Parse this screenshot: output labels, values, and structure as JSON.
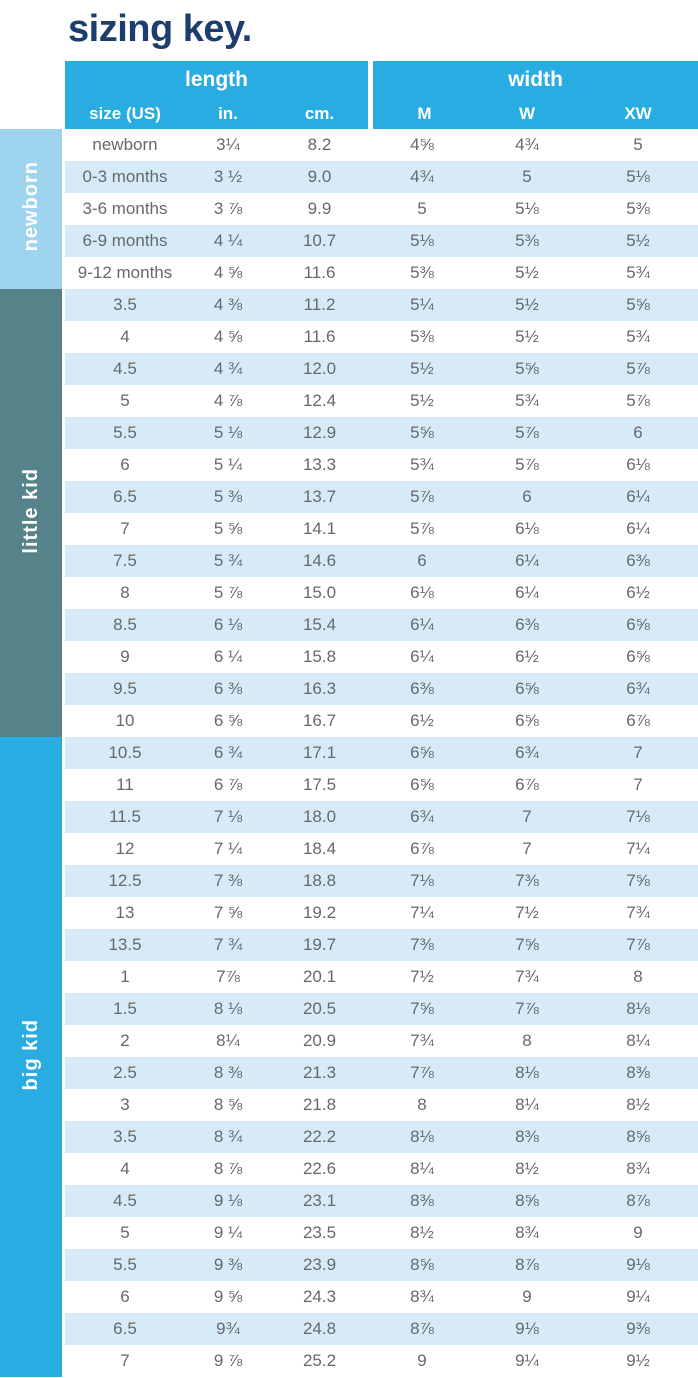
{
  "title": "sizing key.",
  "colors": {
    "title_text": "#1c3e6e",
    "header_bg": "#29ace2",
    "header_text": "#ffffff",
    "stripe_bg": "#d6ebf7",
    "row_bg": "#ffffff",
    "body_text": "#66686c",
    "side_text": "#ffffff",
    "newborn_bg": "#9fd4ee",
    "little_kid_bg": "#56828a",
    "big_kid_bg": "#29ace2"
  },
  "header": {
    "length_label": "length",
    "width_label": "width",
    "columns": [
      "size (US)",
      "in.",
      "cm.",
      "M",
      "W",
      "XW"
    ]
  },
  "groups": [
    {
      "key": "newborn",
      "label": "newborn",
      "rows": [
        [
          "newborn",
          "3¼",
          "8.2",
          "4⅝",
          "4¾",
          "5"
        ],
        [
          "0-3 months",
          "3 ½",
          "9.0",
          "4¾",
          "5",
          "5⅛"
        ],
        [
          "3-6 months",
          "3 ⅞",
          "9.9",
          "5",
          "5⅛",
          "5⅜"
        ],
        [
          "6-9 months",
          "4 ¼",
          "10.7",
          "5⅛",
          "5⅜",
          "5½"
        ],
        [
          "9-12 months",
          "4 ⅝",
          "11.6",
          "5⅜",
          "5½",
          "5¾"
        ]
      ]
    },
    {
      "key": "little-kid",
      "label": "little kid",
      "rows": [
        [
          "3.5",
          "4 ⅜",
          "11.2",
          "5¼",
          "5½",
          "5⅝"
        ],
        [
          "4",
          "4 ⅝",
          "11.6",
          "5⅜",
          "5½",
          "5¾"
        ],
        [
          "4.5",
          "4 ¾",
          "12.0",
          "5½",
          "5⅝",
          "5⅞"
        ],
        [
          "5",
          "4 ⅞",
          "12.4",
          "5½",
          "5¾",
          "5⅞"
        ],
        [
          "5.5",
          "5 ⅛",
          "12.9",
          "5⅝",
          "5⅞",
          "6"
        ],
        [
          "6",
          "5 ¼",
          "13.3",
          "5¾",
          "5⅞",
          "6⅛"
        ],
        [
          "6.5",
          "5 ⅜",
          "13.7",
          "5⅞",
          "6",
          "6¼"
        ],
        [
          "7",
          "5 ⅝",
          "14.1",
          "5⅞",
          "6⅛",
          "6¼"
        ],
        [
          "7.5",
          "5 ¾",
          "14.6",
          "6",
          "6¼",
          "6⅜"
        ],
        [
          "8",
          "5 ⅞",
          "15.0",
          "6⅛",
          "6¼",
          "6½"
        ],
        [
          "8.5",
          "6 ⅛",
          "15.4",
          "6¼",
          "6⅜",
          "6⅝"
        ],
        [
          "9",
          "6 ¼",
          "15.8",
          "6¼",
          "6½",
          "6⅝"
        ],
        [
          "9.5",
          "6 ⅜",
          "16.3",
          "6⅜",
          "6⅝",
          "6¾"
        ],
        [
          "10",
          "6 ⅝",
          "16.7",
          "6½",
          "6⅝",
          "6⅞"
        ]
      ]
    },
    {
      "key": "big-kid",
      "label": "big kid",
      "rows": [
        [
          "10.5",
          "6 ¾",
          "17.1",
          "6⅝",
          "6¾",
          "7"
        ],
        [
          "11",
          "6 ⅞",
          "17.5",
          "6⅝",
          "6⅞",
          "7"
        ],
        [
          "11.5",
          "7 ⅛",
          "18.0",
          "6¾",
          "7",
          "7⅛"
        ],
        [
          "12",
          "7 ¼",
          "18.4",
          "6⅞",
          "7",
          "7¼"
        ],
        [
          "12.5",
          "7 ⅜",
          "18.8",
          "7⅛",
          "7⅜",
          "7⅝"
        ],
        [
          "13",
          "7 ⅝",
          "19.2",
          "7¼",
          "7½",
          "7¾"
        ],
        [
          "13.5",
          "7 ¾",
          "19.7",
          "7⅜",
          "7⅝",
          "7⅞"
        ],
        [
          "1",
          "7⅞",
          "20.1",
          "7½",
          "7¾",
          "8"
        ],
        [
          "1.5",
          "8 ⅛",
          "20.5",
          "7⅝",
          "7⅞",
          "8⅛"
        ],
        [
          "2",
          "8¼",
          "20.9",
          "7¾",
          "8",
          "8¼"
        ],
        [
          "2.5",
          "8 ⅜",
          "21.3",
          "7⅞",
          "8⅛",
          "8⅜"
        ],
        [
          "3",
          "8 ⅝",
          "21.8",
          "8",
          "8¼",
          "8½"
        ],
        [
          "3.5",
          "8 ¾",
          "22.2",
          "8⅛",
          "8⅜",
          "8⅝"
        ],
        [
          "4",
          "8 ⅞",
          "22.6",
          "8¼",
          "8½",
          "8¾"
        ],
        [
          "4.5",
          "9 ⅛",
          "23.1",
          "8⅜",
          "8⅝",
          "8⅞"
        ],
        [
          "5",
          "9 ¼",
          "23.5",
          "8½",
          "8¾",
          "9"
        ],
        [
          "5.5",
          "9 ⅜",
          "23.9",
          "8⅝",
          "8⅞",
          "9⅛"
        ],
        [
          "6",
          "9 ⅝",
          "24.3",
          "8¾",
          "9",
          "9¼"
        ],
        [
          "6.5",
          "9¾",
          "24.8",
          "8⅞",
          "9⅛",
          "9⅜"
        ],
        [
          "7",
          "9 ⅞",
          "25.2",
          "9",
          "9¼",
          "9½"
        ]
      ]
    }
  ]
}
